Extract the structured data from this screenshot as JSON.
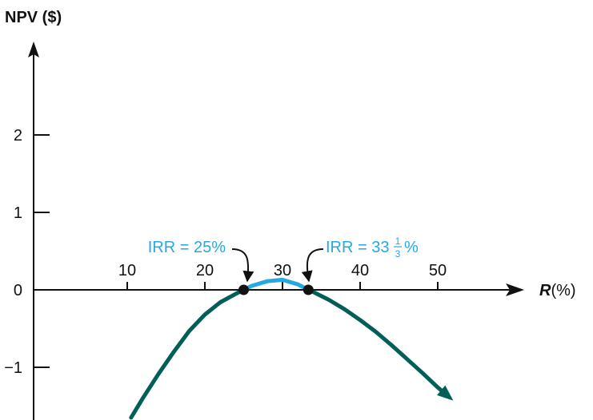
{
  "chart_data": {
    "type": "line",
    "ylabel": "NPV ($)",
    "xlabel": {
      "variable": "R",
      "unit": "(%)"
    },
    "x_ticks": [
      "10",
      "20",
      "30",
      "40",
      "50"
    ],
    "y_ticks": [
      "2",
      "1",
      "0",
      "−1"
    ],
    "xlim": [
      -2,
      53
    ],
    "ylim": [
      -1.65,
      3.0
    ],
    "series": [
      {
        "x": [
          10.5,
          12,
          14,
          16,
          18,
          20,
          22,
          24,
          25,
          26,
          28,
          30,
          32,
          33.33,
          34,
          36,
          38,
          40,
          42,
          44,
          46,
          48,
          50,
          52
        ],
        "y": [
          -1.65,
          -1.4,
          -1.09,
          -0.8,
          -0.53,
          -0.32,
          -0.16,
          -0.05,
          0.0,
          0.05,
          0.11,
          0.13,
          0.07,
          0.0,
          -0.03,
          -0.13,
          -0.25,
          -0.39,
          -0.54,
          -0.71,
          -0.89,
          -1.07,
          -1.26,
          -1.43
        ]
      }
    ],
    "highlight_range": [
      25,
      33.33
    ],
    "points": [
      {
        "x": 25,
        "y": 0
      },
      {
        "x": 33.33,
        "y": 0
      }
    ],
    "annotations": [
      {
        "text": "IRR = 25%",
        "x": 25,
        "y": 0
      },
      {
        "text": "IRR = 33",
        "frac_num": "1",
        "frac_den": "3",
        "suffix": "%",
        "x": 33.33,
        "y": 0
      }
    ],
    "colors": {
      "curve": "#005f56",
      "highlight": "#25a9e0",
      "axis": "#111111",
      "annotation": "#25a9e0"
    }
  }
}
